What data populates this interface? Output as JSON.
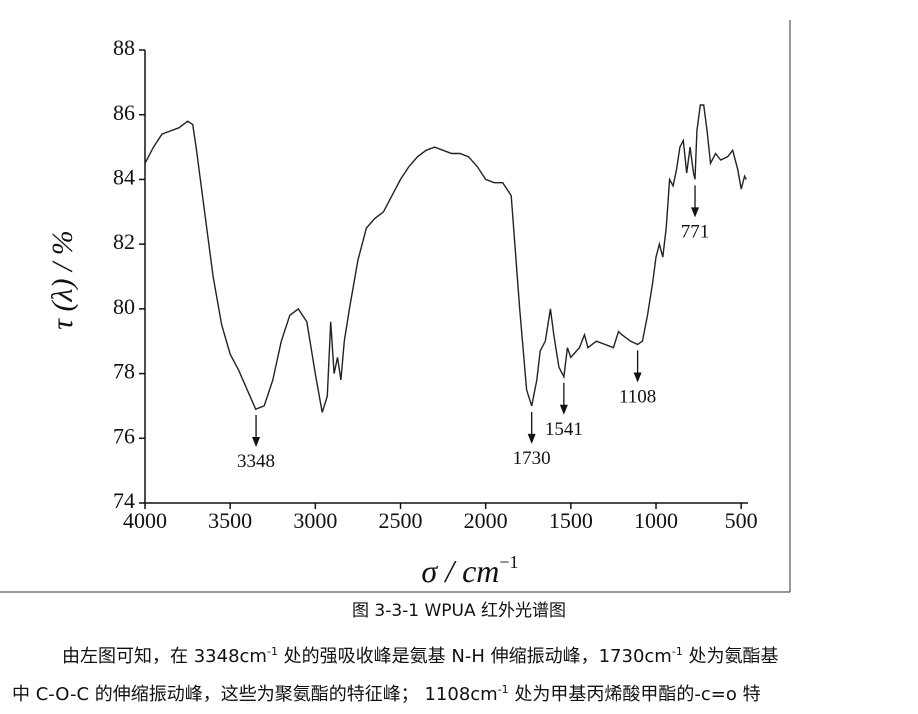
{
  "chart_data": {
    "type": "line",
    "y_label": "τ (λ) / %",
    "x_label": {
      "text": "σ / cm",
      "sup": "−1"
    },
    "xlim": [
      4000,
      460
    ],
    "xticks": [
      4000,
      3500,
      3000,
      2500,
      2000,
      1500,
      1000,
      500
    ],
    "ylim": [
      74,
      88
    ],
    "yticks": [
      74,
      76,
      78,
      80,
      82,
      84,
      86,
      88
    ],
    "color": "#222222",
    "x": [
      4000,
      3950,
      3900,
      3850,
      3800,
      3750,
      3720,
      3700,
      3650,
      3600,
      3550,
      3500,
      3450,
      3400,
      3350,
      3300,
      3250,
      3200,
      3150,
      3100,
      3050,
      3000,
      2960,
      2930,
      2910,
      2890,
      2870,
      2850,
      2830,
      2800,
      2750,
      2700,
      2650,
      2600,
      2550,
      2500,
      2450,
      2400,
      2350,
      2300,
      2250,
      2200,
      2150,
      2100,
      2050,
      2000,
      1950,
      1900,
      1850,
      1800,
      1760,
      1730,
      1700,
      1680,
      1650,
      1620,
      1600,
      1570,
      1541,
      1520,
      1500,
      1450,
      1420,
      1400,
      1350,
      1300,
      1250,
      1220,
      1200,
      1150,
      1108,
      1080,
      1050,
      1020,
      1000,
      980,
      960,
      940,
      920,
      900,
      880,
      860,
      840,
      820,
      800,
      780,
      771,
      760,
      740,
      720,
      700,
      680,
      650,
      620,
      580,
      550,
      520,
      500,
      480,
      470
    ],
    "values": [
      84.5,
      85.0,
      85.4,
      85.5,
      85.6,
      85.8,
      85.7,
      85.0,
      83.0,
      81.0,
      79.5,
      78.6,
      78.1,
      77.5,
      76.9,
      77.0,
      77.8,
      79.0,
      79.8,
      80.0,
      79.6,
      78.0,
      76.8,
      77.3,
      79.6,
      78.0,
      78.5,
      77.8,
      79.0,
      80.0,
      81.5,
      82.5,
      82.8,
      83.0,
      83.5,
      84.0,
      84.4,
      84.7,
      84.9,
      85.0,
      84.9,
      84.8,
      84.8,
      84.7,
      84.4,
      84.0,
      83.9,
      83.9,
      83.5,
      80.0,
      77.5,
      77.0,
      77.8,
      78.7,
      79.0,
      80.0,
      79.2,
      78.2,
      77.9,
      78.8,
      78.5,
      78.8,
      79.2,
      78.8,
      79.0,
      78.9,
      78.8,
      79.3,
      79.2,
      79.0,
      78.9,
      79.0,
      79.8,
      80.8,
      81.6,
      82.0,
      81.6,
      82.5,
      84.0,
      83.8,
      84.3,
      85.0,
      85.2,
      84.2,
      85.0,
      84.2,
      84.0,
      85.5,
      86.3,
      86.3,
      85.5,
      84.5,
      84.8,
      84.6,
      84.7,
      84.9,
      84.3,
      83.7,
      84.1,
      84.0
    ],
    "annotations": [
      {
        "text": "3348",
        "x": 3348
      },
      {
        "text": "1730",
        "x": 1730
      },
      {
        "text": "1541",
        "x": 1541
      },
      {
        "text": "1108",
        "x": 1108
      },
      {
        "text": "771",
        "x": 771
      }
    ]
  },
  "caption": "图 3-3-1 WPUA 红外光谱图",
  "paragraph": [
    [
      {
        "t": "由左图可知，在 3348cm"
      },
      {
        "sup": "-1"
      },
      {
        "t": " 处的强吸收峰是氨基 N-H 伸缩振动峰，1730cm"
      },
      {
        "sup": "-1"
      },
      {
        "t": " 处为氨酯基"
      }
    ],
    [
      {
        "t": "中 C-O-C 的伸缩振动峰，这些为聚氨酯的特征峰； 1108cm"
      },
      {
        "sup": "-1"
      },
      {
        "t": " 处为甲基丙烯酸甲酯的-c=o 特"
      }
    ]
  ]
}
